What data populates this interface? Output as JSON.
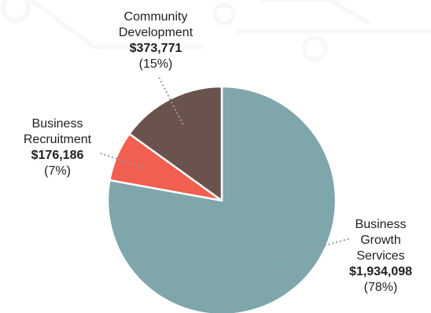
{
  "chart_data": {
    "type": "pie",
    "title": "",
    "slices": [
      {
        "label_lines": [
          "Business",
          "Growth",
          "Services"
        ],
        "amount": "$1,934,098",
        "percent": "(78%)",
        "value": 1934098,
        "color": "#7fa6ab"
      },
      {
        "label_lines": [
          "Business",
          "Recruitment"
        ],
        "amount": "$176,186",
        "percent": "(7%)",
        "value": 176186,
        "color": "#f15f51"
      },
      {
        "label_lines": [
          "Community",
          "Development"
        ],
        "amount": "$373,771",
        "percent": "(15%)",
        "value": 373771,
        "color": "#6b534d"
      }
    ],
    "start_angle_deg": 0,
    "direction": "clockwise",
    "legend": "none",
    "leader_line_color": "#9a9a9a",
    "slice_border_color": "#ffffff"
  }
}
